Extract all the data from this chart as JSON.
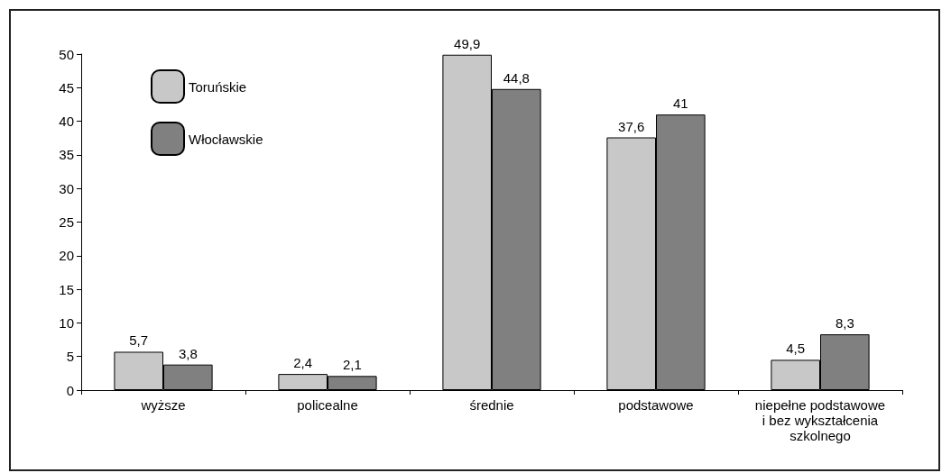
{
  "chart_data": {
    "type": "bar",
    "categories": [
      "wyższe",
      "policealne",
      "średnie",
      "podstawowe",
      "niepełne podstawowe\ni bez wykształcenia\nszkolnego"
    ],
    "series": [
      {
        "name": "Toruńskie",
        "color": "#c8c8c8",
        "values": [
          5.7,
          2.4,
          49.9,
          37.6,
          4.5
        ],
        "value_labels": [
          "5,7",
          "2,4",
          "49,9",
          "37,6",
          "4,5"
        ]
      },
      {
        "name": "Włocławskie",
        "color": "#808080",
        "values": [
          3.8,
          2.1,
          44.8,
          41,
          8.3
        ],
        "value_labels": [
          "3,8",
          "2,1",
          "44,8",
          "41",
          "8,3"
        ]
      }
    ],
    "ylim": [
      0,
      50
    ],
    "yticks": [
      0,
      5,
      10,
      15,
      20,
      25,
      30,
      35,
      40,
      45,
      50
    ],
    "grid": false,
    "legend": "top left"
  }
}
